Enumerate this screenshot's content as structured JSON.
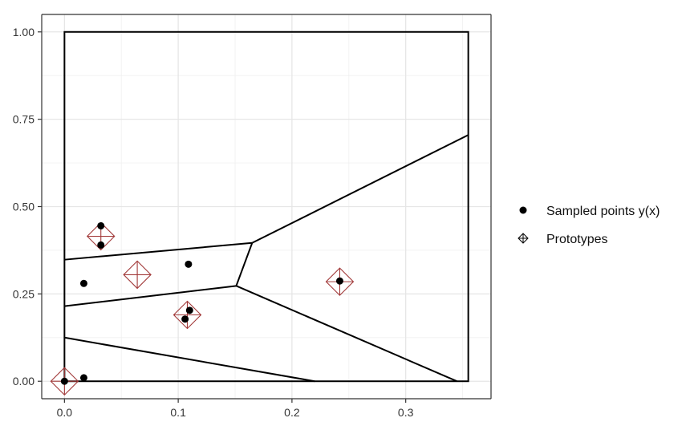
{
  "chart_data": {
    "type": "scatter",
    "title": "",
    "xlabel": "",
    "ylabel": "",
    "xlim": [
      -0.02,
      0.375
    ],
    "ylim": [
      -0.05,
      1.05
    ],
    "x_ticks": [
      0.0,
      0.1,
      0.2,
      0.3
    ],
    "x_tick_labels": [
      "0.0",
      "0.1",
      "0.2",
      "0.3"
    ],
    "y_ticks": [
      0.0,
      0.25,
      0.5,
      0.75,
      1.0
    ],
    "y_tick_labels": [
      "0.00",
      "0.25",
      "0.50",
      "0.75",
      "1.00"
    ],
    "grid": true,
    "legend_position": "right",
    "colors": {
      "points": "#000000",
      "prototypes": "#a23a3a",
      "lines": "#000000",
      "grid": "#e6e6e6"
    },
    "series": [
      {
        "name": "Sampled points y(x)",
        "marker": "filled-circle",
        "points": [
          {
            "x": 0.0,
            "y": 0.0
          },
          {
            "x": 0.017,
            "y": 0.01
          },
          {
            "x": 0.017,
            "y": 0.28
          },
          {
            "x": 0.032,
            "y": 0.445
          },
          {
            "x": 0.032,
            "y": 0.39
          },
          {
            "x": 0.109,
            "y": 0.335
          },
          {
            "x": 0.11,
            "y": 0.203
          },
          {
            "x": 0.106,
            "y": 0.178
          },
          {
            "x": 0.242,
            "y": 0.287
          }
        ]
      },
      {
        "name": "Prototypes",
        "marker": "diamond-plus",
        "points": [
          {
            "x": 0.0,
            "y": 0.0
          },
          {
            "x": 0.032,
            "y": 0.415
          },
          {
            "x": 0.064,
            "y": 0.305
          },
          {
            "x": 0.108,
            "y": 0.19
          },
          {
            "x": 0.242,
            "y": 0.285
          }
        ]
      }
    ],
    "voronoi_segments": [
      {
        "x1": 0.0,
        "y1": 0.348,
        "x2": 0.165,
        "y2": 0.396
      },
      {
        "x1": 0.0,
        "y1": 0.215,
        "x2": 0.151,
        "y2": 0.273
      },
      {
        "x1": 0.151,
        "y1": 0.273,
        "x2": 0.165,
        "y2": 0.396
      },
      {
        "x1": 0.165,
        "y1": 0.396,
        "x2": 0.355,
        "y2": 0.705
      },
      {
        "x1": 0.151,
        "y1": 0.273,
        "x2": 0.345,
        "y2": 0.0
      },
      {
        "x1": 0.0,
        "y1": 0.125,
        "x2": 0.22,
        "y2": 0.0
      }
    ],
    "bounding_box": {
      "x_min": 0.0,
      "x_max": 0.355,
      "y_min": 0.0,
      "y_max": 1.0
    }
  }
}
